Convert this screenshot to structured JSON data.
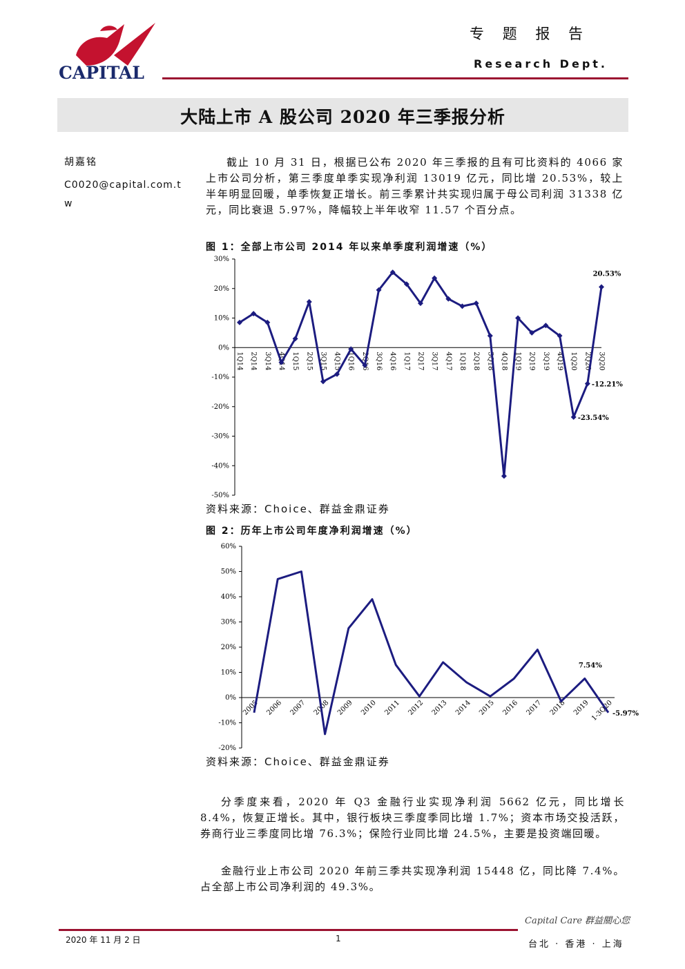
{
  "header": {
    "logo": "CAPITAL",
    "report_type": "专 题 报 告",
    "dept": "Research Dept."
  },
  "title": "大陆上市 A 股公司 2020 年三季报分析",
  "author": {
    "name": "胡嘉铭",
    "email": "C0020@capital.com.tw"
  },
  "intro": "截止 10 月 31 日，根据已公布 2020 年三季报的且有可比资料的 4066 家上市公司分析，第三季度单季实现净利润 13019 亿元，同比增 20.53%，较上半年明显回暖，单季恢复正增长。前三季累计共实现归属于母公司利润 31338 亿元，同比衰退 5.97%，降幅较上半年收窄 11.57 个百分点。",
  "figures": [
    {
      "caption": "图 1：全部上市公司 2014 年以来单季度利润增速（%）",
      "source": "资料来源：Choice、群益金鼎证券"
    },
    {
      "caption": "图 2：历年上市公司年度净利润增速（%）",
      "source": "资料来源：Choice、群益金鼎证券"
    }
  ],
  "chart_data": [
    {
      "type": "line",
      "color": "#1c1c80",
      "marker": "diamond",
      "categories": [
        "1Q14",
        "2Q14",
        "3Q14",
        "4Q14",
        "1Q15",
        "2Q15",
        "3Q15",
        "4Q15",
        "1Q16",
        "2Q16",
        "3Q16",
        "4Q16",
        "1Q17",
        "2Q17",
        "3Q17",
        "4Q17",
        "1Q18",
        "2Q18",
        "3Q18",
        "4Q18",
        "1Q19",
        "2Q19",
        "3Q19",
        "4Q19",
        "1Q20",
        "2Q20",
        "3Q20"
      ],
      "values": [
        8.5,
        11.5,
        8.5,
        -5,
        3,
        15.5,
        -11.5,
        -9,
        -0.5,
        -6,
        19.5,
        25.5,
        21.5,
        15,
        23.5,
        16.5,
        14,
        15,
        4,
        -43.5,
        10,
        5,
        7.5,
        4,
        -23.54,
        -12.21,
        20.53
      ],
      "value_labels": [
        null,
        null,
        null,
        null,
        null,
        null,
        null,
        null,
        null,
        null,
        null,
        null,
        null,
        null,
        null,
        null,
        null,
        null,
        null,
        null,
        null,
        null,
        null,
        null,
        "-23.54%",
        "-12.21%",
        "20.53%"
      ],
      "ylim": [
        -50,
        30
      ],
      "yticks": [
        {
          "value": -50,
          "label": "-50%"
        },
        {
          "value": -40,
          "label": "-40%"
        },
        {
          "value": -30,
          "label": "-30%"
        },
        {
          "value": -20,
          "label": "-20%"
        },
        {
          "value": -10,
          "label": "-10%"
        },
        {
          "value": 0,
          "label": "0%"
        },
        {
          "value": 10,
          "label": "10%"
        },
        {
          "value": 20,
          "label": "20%"
        },
        {
          "value": 30,
          "label": "30%"
        }
      ]
    },
    {
      "type": "line",
      "color": "#1c1c80",
      "categories": [
        "2005",
        "2006",
        "2007",
        "2008",
        "2009",
        "2010",
        "2011",
        "2012",
        "2013",
        "2014",
        "2015",
        "2016",
        "2017",
        "2018",
        "2019",
        "1-3Q20"
      ],
      "values": [
        -6,
        47,
        50,
        -14.5,
        27.5,
        39,
        13,
        0.5,
        14,
        6,
        0.5,
        7.5,
        19,
        -1.5,
        7.54,
        -5.97
      ],
      "value_labels": [
        null,
        null,
        null,
        null,
        null,
        null,
        null,
        null,
        null,
        null,
        null,
        null,
        null,
        null,
        "7.54%",
        "-5.97%"
      ],
      "ylim": [
        -20,
        60
      ],
      "yticks": [
        {
          "value": -20,
          "label": "-20%"
        },
        {
          "value": -10,
          "label": "-10%"
        },
        {
          "value": 0,
          "label": "0%"
        },
        {
          "value": 10,
          "label": "10%"
        },
        {
          "value": 20,
          "label": "20%"
        },
        {
          "value": 30,
          "label": "30%"
        },
        {
          "value": 40,
          "label": "40%"
        },
        {
          "value": 50,
          "label": "50%"
        },
        {
          "value": 60,
          "label": "60%"
        }
      ]
    }
  ],
  "body": [
    "分季度来看，2020 年 Q3 金融行业实现净利润 5662 亿元，同比增长 8.4%，恢复正增长。其中，银行板块三季度季同比增 1.7%；资本市场交投活跃，券商行业三季度同比增 76.3%；保险行业同比增 24.5%，主要是投资端回暖。",
    "金融行业上市公司 2020 年前三季共实现净利润 15448 亿，同比降 7.4%。占全部上市公司净利润的 49.3%。"
  ],
  "footer": {
    "date": "2020 年 11 月 2 日",
    "page": "1",
    "slogan": "Capital Care 群益關心您",
    "cities": "台北 · 香港 · 上海"
  }
}
